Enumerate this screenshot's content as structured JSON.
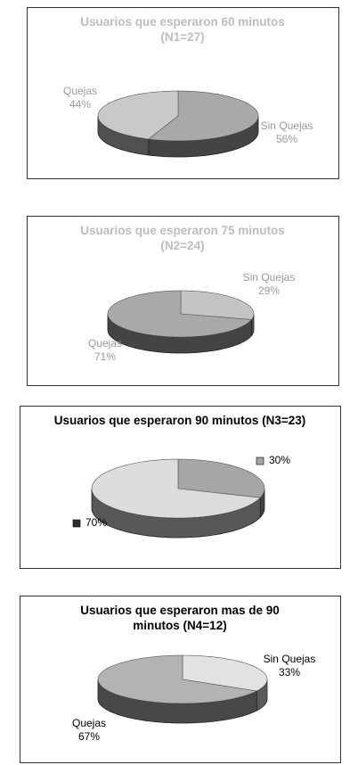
{
  "chart_data": [
    {
      "type": "pie",
      "title": "Usuarios que esperaron 60 minutos (N1=27)",
      "categories": [
        "Sin Quejas",
        "Quejas"
      ],
      "values": [
        56,
        44
      ],
      "value_labels": [
        "56%",
        "44%"
      ],
      "colors": [
        "#a9a9a9",
        "#c9c9c9"
      ]
    },
    {
      "type": "pie",
      "title": "Usuarios que esperaron 75 minutos (N2=24)",
      "categories": [
        "Sin Quejas",
        "Quejas"
      ],
      "values": [
        29,
        71
      ],
      "value_labels": [
        "29%",
        "71%"
      ],
      "colors": [
        "#c4c4c4",
        "#a9a9a9"
      ]
    },
    {
      "type": "pie",
      "title": "Usuarios que esperaron 90 minutos (N3=23)",
      "values": [
        30,
        70
      ],
      "value_labels": [
        "30%",
        "70%"
      ],
      "colors": [
        "#a6a6a6",
        "#dcdcdc"
      ],
      "legend": true
    },
    {
      "type": "pie",
      "title": "Usuarios que esperaron mas de 90 minutos (N4=12)",
      "categories": [
        "Sin Quejas",
        "Quejas"
      ],
      "values": [
        33,
        67
      ],
      "value_labels": [
        "33%",
        "67%"
      ],
      "colors": [
        "#e2e2e2",
        "#b3b3b3"
      ]
    }
  ]
}
